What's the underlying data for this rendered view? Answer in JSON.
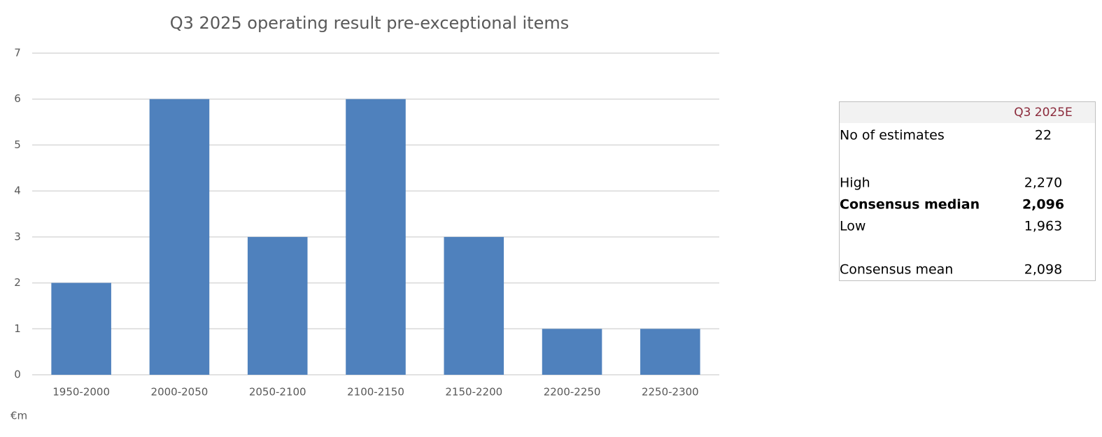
{
  "chart_data": {
    "type": "bar",
    "title": "Q3 2025 operating result pre-exceptional items",
    "categories": [
      "1950-2000",
      "2000-2050",
      "2050-2100",
      "2100-2150",
      "2150-2200",
      "2200-2250",
      "2250-2300"
    ],
    "values": [
      2,
      6,
      3,
      6,
      3,
      1,
      1
    ],
    "color": "#4f81bd",
    "ylim": [
      0,
      7
    ],
    "yticks": [
      0,
      1,
      2,
      3,
      4,
      5,
      6,
      7
    ],
    "grid": true,
    "x_label": "€m"
  },
  "table": {
    "header": "Q3 2025E",
    "rows": [
      [
        "No of estimates",
        "22"
      ],
      [
        "High",
        "2,270"
      ],
      [
        "Consensus median",
        "2,096"
      ],
      [
        "Low",
        "1,963"
      ],
      [
        "Consensus mean",
        "2,098"
      ]
    ]
  }
}
